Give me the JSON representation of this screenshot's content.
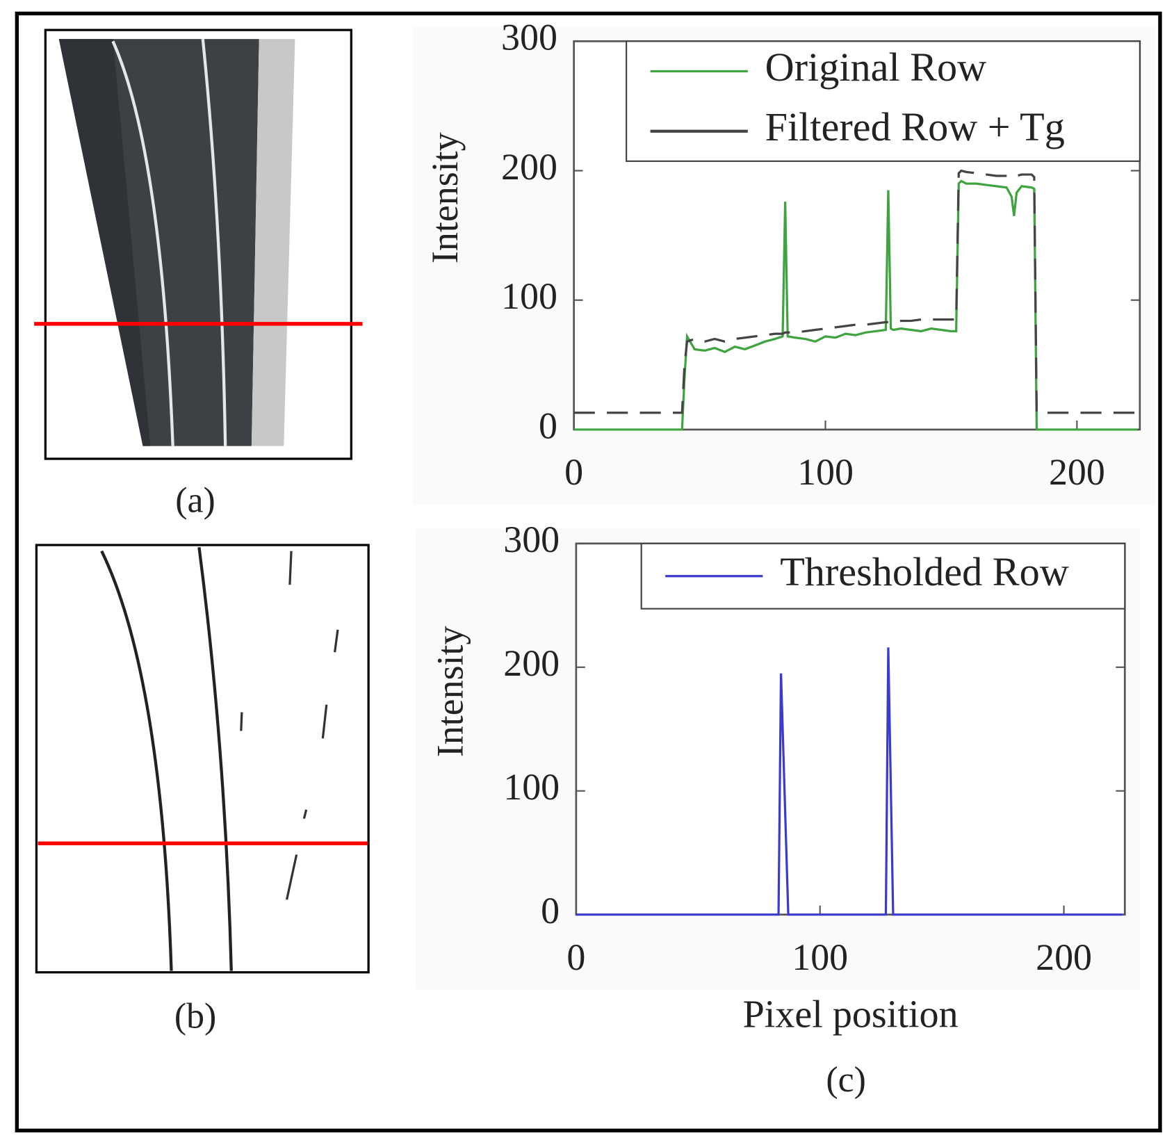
{
  "captions": [
    "(a)",
    "(b)",
    "(c)"
  ],
  "chart_data": [
    {
      "type": "line",
      "ylabel": "Intensity",
      "x": [
        0,
        43,
        44,
        45,
        48,
        52,
        56,
        60,
        64,
        68,
        72,
        76,
        80,
        83,
        84,
        85,
        88,
        92,
        96,
        100,
        104,
        108,
        112,
        116,
        120,
        124,
        125,
        126,
        127,
        130,
        134,
        138,
        142,
        146,
        150,
        152,
        153,
        154,
        156,
        160,
        164,
        168,
        172,
        174,
        175,
        176,
        178,
        182,
        183,
        184,
        185,
        224
      ],
      "series": [
        {
          "name": "Original Row",
          "color": "#3fa33f",
          "linestyle": "solid",
          "values": [
            0,
            0,
            40,
            72,
            62,
            61,
            63,
            60,
            64,
            62,
            65,
            68,
            70,
            72,
            176,
            72,
            71,
            70,
            68,
            72,
            71,
            74,
            73,
            75,
            76,
            77,
            185,
            78,
            77,
            78,
            77,
            76,
            78,
            77,
            76,
            76,
            190,
            192,
            190,
            190,
            189,
            188,
            187,
            180,
            165,
            183,
            188,
            187,
            186,
            0,
            0,
            0
          ]
        },
        {
          "name": "Filtered Row + Tg",
          "color": "#444444",
          "linestyle": "dashed",
          "values": [
            13,
            13,
            50,
            68,
            70,
            68,
            70,
            68,
            70,
            71,
            72,
            73,
            74,
            74,
            75,
            75,
            75,
            76,
            77,
            78,
            79,
            80,
            81,
            81,
            82,
            83,
            83,
            83,
            83,
            84,
            84,
            85,
            85,
            85,
            85,
            85,
            198,
            200,
            199,
            198,
            197,
            196,
            196,
            196,
            195,
            196,
            197,
            197,
            195,
            13,
            13,
            13
          ]
        }
      ],
      "xlim": [
        0,
        225
      ],
      "xticks": [
        0,
        100,
        200
      ],
      "ylim": [
        0,
        300
      ],
      "yticks": [
        0,
        100,
        200,
        300
      ],
      "legend": "upper right",
      "grid": false
    },
    {
      "type": "line",
      "xlabel": "Pixel position",
      "ylabel": "Intensity",
      "x": [
        0,
        83,
        84,
        87,
        127,
        128,
        130,
        224
      ],
      "series": [
        {
          "name": "Thresholded Row",
          "color": "#3b3bd0",
          "linestyle": "solid",
          "values": [
            0,
            0,
            195,
            0,
            0,
            216,
            0,
            0
          ]
        }
      ],
      "xlim": [
        0,
        225
      ],
      "xticks": [
        0,
        100,
        200
      ],
      "ylim": [
        0,
        300
      ],
      "yticks": [
        0,
        100,
        200,
        300
      ],
      "legend": "upper right",
      "grid": false
    }
  ]
}
